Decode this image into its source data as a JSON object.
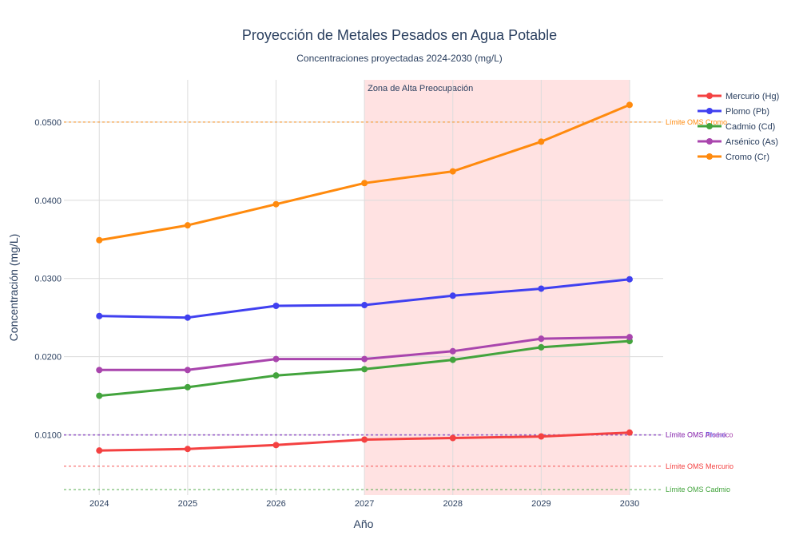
{
  "chart_data": {
    "type": "line",
    "title": "Proyección de Metales Pesados en Agua Potable",
    "subtitle": "Concentraciones proyectadas 2024-2030 (mg/L)",
    "xlabel": "Año",
    "ylabel": "Concentración (mg/L)",
    "x": [
      2024,
      2025,
      2026,
      2027,
      2028,
      2029,
      2030
    ],
    "xlim": [
      2023.6,
      2030.38
    ],
    "ylim": [
      0.0023,
      0.0554
    ],
    "yticks": [
      0.01,
      0.02,
      0.03,
      0.04,
      0.05
    ],
    "ytick_labels": [
      "0.0100",
      "0.0200",
      "0.0300",
      "0.0400",
      "0.0500"
    ],
    "grid": true,
    "legend_position": "top-right",
    "series": [
      {
        "name": "Mercurio (Hg)",
        "color": "#f44141",
        "values": [
          0.008,
          0.0082,
          0.0087,
          0.0094,
          0.0096,
          0.0098,
          0.0103
        ]
      },
      {
        "name": "Plomo (Pb)",
        "color": "#4040f0",
        "values": [
          0.0252,
          0.025,
          0.0265,
          0.0266,
          0.0278,
          0.0287,
          0.0299
        ]
      },
      {
        "name": "Cadmio (Cd)",
        "color": "#43a43d",
        "values": [
          0.015,
          0.0161,
          0.0176,
          0.0184,
          0.0196,
          0.0212,
          0.022
        ]
      },
      {
        "name": "Arsénico (As)",
        "color": "#a945ad",
        "values": [
          0.0183,
          0.0183,
          0.0197,
          0.0197,
          0.0207,
          0.0223,
          0.0225
        ]
      },
      {
        "name": "Cromo (Cr)",
        "color": "#ff8a0d",
        "values": [
          0.0349,
          0.0368,
          0.0395,
          0.0422,
          0.0437,
          0.0475,
          0.0522
        ]
      }
    ],
    "thresholds": [
      {
        "label": "Límite OMS Cromo",
        "value": 0.05,
        "color": "#ff8a0d"
      },
      {
        "label": "Límite OMS Plomo",
        "value": 0.01,
        "color": "#4040f0"
      },
      {
        "label": "Límite OMS Arsénico",
        "value": 0.01,
        "color": "#a945ad"
      },
      {
        "label": "Límite OMS Mercurio",
        "value": 0.006,
        "color": "#f44141"
      },
      {
        "label": "Límite OMS Cadmio",
        "value": 0.003,
        "color": "#43a43d"
      }
    ],
    "highlight_zone": {
      "label": "Zona de Alta Preocupación",
      "x_start": 2027,
      "x_end": 2030,
      "color": "#ffd6d6"
    }
  }
}
